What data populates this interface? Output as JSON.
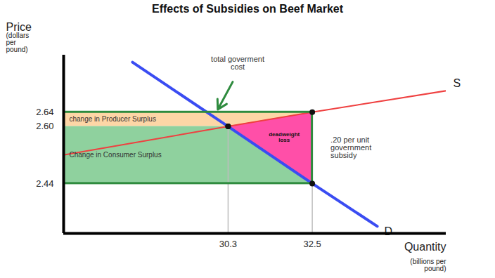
{
  "chart_data": {
    "type": "line",
    "title": "Effects of Subsidies on Beef Market",
    "xlabel": "Quantity",
    "xlabel_note": "(billions per pound)",
    "ylabel": "Price",
    "ylabel_note": "(dollars per pound)",
    "xlim": [
      26,
      36
    ],
    "xticks": [
      30.3,
      32.5
    ],
    "ylim": [
      2.3,
      2.8
    ],
    "yticks": [
      2.64,
      {
        "value": 2.6,
        "label": "2.60"
      },
      2.44
    ],
    "grid": false,
    "series": [
      {
        "name": "S",
        "color": "#ef4040",
        "x": [
          26,
          30.3,
          32.5,
          36
        ],
        "values": [
          2.52,
          2.6,
          2.64,
          2.7
        ]
      },
      {
        "name": "D",
        "color": "#3a4cf2",
        "x": [
          27.8,
          30.3,
          32.5,
          34.2
        ],
        "values": [
          2.78,
          2.6,
          2.44,
          2.32
        ]
      }
    ],
    "regions": [
      {
        "label": "change in Producer Surplus",
        "color": "#fdd6a6",
        "x": [
          26,
          32.5
        ],
        "y": [
          2.6,
          2.64
        ]
      },
      {
        "label": "Change in Consumer Surplus",
        "color": "#8fd19e",
        "x": [
          26,
          32.5
        ],
        "y": [
          2.44,
          2.6
        ]
      }
    ],
    "deadweight_loss": {
      "label": "deadweight loss",
      "color": "#ff4fa8",
      "x": [
        30.3,
        32.5
      ],
      "y_low": [
        2.6,
        2.44
      ],
      "y_high": [
        2.6,
        2.64
      ]
    },
    "government_cost": {
      "label": "total goverment cost",
      "color": "#2e8b3e",
      "x": [
        26,
        32.5
      ],
      "y": [
        2.44,
        2.64
      ]
    },
    "subsidy_annotation": {
      "label": ".20 per unit government subsidy"
    }
  }
}
